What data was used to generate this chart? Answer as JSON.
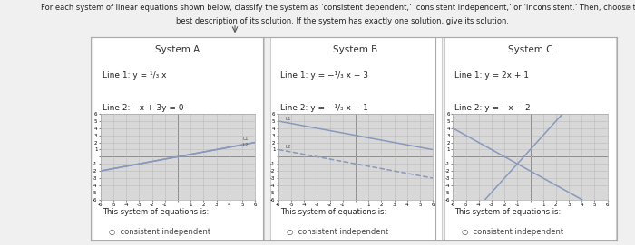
{
  "title_line1": "For each system of linear equations shown below, classify the system as ‘consistent dependent,’ ‘consistent independent,’ or ‘inconsistent.’ Then, choose the",
  "title_line2": "best description of its solution. If the system has exactly one solution, give its solution.",
  "systems": [
    {
      "name": "System A",
      "line1_label": "Line 1: y = ¹/₃ x",
      "line2_label": "Line 2: −x + 3y = 0",
      "line1_eq": [
        0.3333,
        0
      ],
      "line2_eq": [
        0.3333,
        0
      ],
      "line1_color": "#8899bb",
      "line2_color": "#8899bb"
    },
    {
      "name": "System B",
      "line1_label": "Line 1: y = −¹/₃ x + 3",
      "line2_label": "Line 2: y = −¹/₃ x − 1",
      "line1_eq": [
        -0.3333,
        3
      ],
      "line2_eq": [
        -0.3333,
        -1
      ],
      "line1_color": "#8899bb",
      "line2_color": "#8899bb"
    },
    {
      "name": "System C",
      "line1_label": "Line 1: y = 2x + 1",
      "line2_label": "Line 2: y = −x − 2",
      "line1_eq": [
        2,
        1
      ],
      "line2_eq": [
        -1,
        -2
      ],
      "line1_color": "#8899bb",
      "line2_color": "#8899bb"
    }
  ],
  "xlim": [
    -6,
    6
  ],
  "ylim": [
    -6,
    6
  ],
  "bottom_label": "This system of equations is:",
  "radio_label": "consistent independent",
  "outer_bg": "#c8c8c8",
  "inner_bg": "#f0f0f0",
  "panel_bg": "#ffffff",
  "graph_bg": "#d8d8d8",
  "grid_color": "#bbbbbb",
  "title_fontsize": 6.0,
  "name_fontsize": 7.5,
  "line_label_fontsize": 6.5,
  "bottom_fontsize": 6.0,
  "radio_fontsize": 6.0
}
